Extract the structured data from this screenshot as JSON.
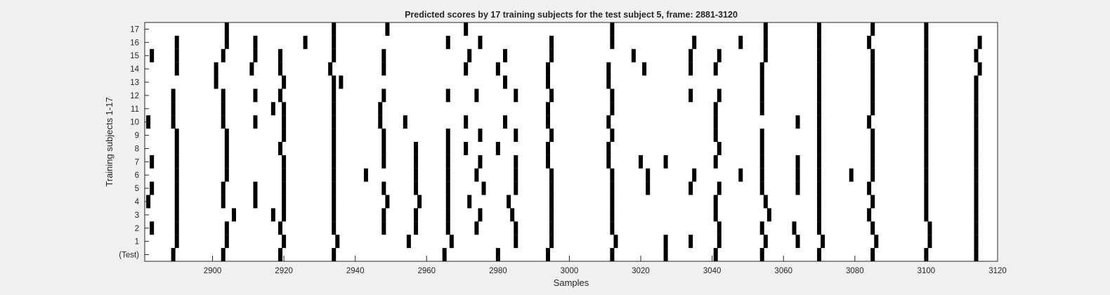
{
  "chart_data": {
    "type": "raster",
    "title": "Predicted scores by 17 training subjects for the test subject 5, frame: 2881-3120",
    "xlabel": "Samples",
    "ylabel": "Training subjects 1-17",
    "xlim": [
      2881,
      3120
    ],
    "xticks": [
      2900,
      2920,
      2940,
      2960,
      2980,
      3000,
      3020,
      3040,
      3060,
      3080,
      3100,
      3120
    ],
    "grid": false,
    "mark_color": "#000000",
    "background_color": "#ffffff",
    "rows": [
      {
        "label": "17",
        "events": [
          2904,
          2934,
          2949,
          2971,
          3012,
          3055,
          3070,
          3085,
          3100
        ]
      },
      {
        "label": "16",
        "events": [
          2890,
          2904,
          2912,
          2926,
          2934,
          2966,
          2975,
          2995,
          3012,
          3035,
          3048,
          3055,
          3070,
          3084,
          3100,
          3115
        ]
      },
      {
        "label": "15",
        "events": [
          2883,
          2890,
          2903,
          2912,
          2919,
          2934,
          2948,
          2972,
          2982,
          2995,
          3018,
          3034,
          3042,
          3055,
          3070,
          3085,
          3100,
          3114
        ]
      },
      {
        "label": "14",
        "events": [
          2890,
          2901,
          2911,
          2919,
          2933,
          2948,
          2971,
          2980,
          2994,
          3011,
          3021,
          3034,
          3041,
          3054,
          3070,
          3085,
          3100,
          3115
        ]
      },
      {
        "label": "13",
        "events": [
          2901,
          2920,
          2934,
          2936,
          2982,
          2994,
          3011,
          3054,
          3070,
          3085,
          3100,
          3114
        ]
      },
      {
        "label": "12",
        "events": [
          2889,
          2903,
          2912,
          2919,
          2934,
          2948,
          2966,
          2974,
          2985,
          2995,
          3012,
          3034,
          3042,
          3054,
          3070,
          3085,
          3100,
          3114
        ]
      },
      {
        "label": "11",
        "events": [
          2889,
          2903,
          2917,
          2920,
          2934,
          2947,
          2994,
          3012,
          3041,
          3054,
          3070,
          3085,
          3100,
          3114
        ]
      },
      {
        "label": "10",
        "events": [
          2882,
          2889,
          2903,
          2912,
          2920,
          2934,
          2947,
          2954,
          2971,
          2982,
          2994,
          3011,
          3041,
          3064,
          3070,
          3084,
          3100,
          3114
        ]
      },
      {
        "label": "9",
        "events": [
          2890,
          2904,
          2920,
          2934,
          2948,
          2966,
          2975,
          2985,
          2995,
          3012,
          3041,
          3054,
          3070,
          3085,
          3100,
          3114
        ]
      },
      {
        "label": "8",
        "events": [
          2890,
          2904,
          2919,
          2934,
          2948,
          2957,
          2966,
          2971,
          2980,
          2994,
          3011,
          3042,
          3054,
          3070,
          3085,
          3100,
          3114
        ]
      },
      {
        "label": "7",
        "events": [
          2883,
          2890,
          2904,
          2920,
          2934,
          2948,
          2957,
          2966,
          2975,
          2985,
          2994,
          3011,
          3020,
          3027,
          3041,
          3054,
          3064,
          3070,
          3085,
          3100,
          3114
        ]
      },
      {
        "label": "6",
        "events": [
          2890,
          2904,
          2920,
          2934,
          2943,
          2957,
          2966,
          2974,
          2985,
          2995,
          3012,
          3022,
          3035,
          3048,
          3054,
          3064,
          3070,
          3079,
          3085,
          3100,
          3114
        ]
      },
      {
        "label": "5",
        "events": [
          2883,
          2890,
          2903,
          2912,
          2920,
          2934,
          2948,
          2957,
          2966,
          2976,
          2985,
          2995,
          3012,
          3022,
          3034,
          3042,
          3054,
          3064,
          3070,
          3084,
          3100,
          3114
        ]
      },
      {
        "label": "4",
        "events": [
          2882,
          2890,
          2903,
          2912,
          2920,
          2934,
          2949,
          2958,
          2966,
          2972,
          2983,
          2995,
          3012,
          3041,
          3055,
          3070,
          3085,
          3100,
          3114
        ]
      },
      {
        "label": "3",
        "events": [
          2890,
          2906,
          2917,
          2920,
          2934,
          2948,
          2957,
          2966,
          2975,
          2984,
          2995,
          3012,
          3041,
          3056,
          3070,
          3084,
          3100,
          3114
        ]
      },
      {
        "label": "2",
        "events": [
          2883,
          2890,
          2904,
          2919,
          2934,
          2948,
          2957,
          2966,
          2974,
          2985,
          2995,
          3012,
          3042,
          3054,
          3063,
          3070,
          3085,
          3101,
          3114
        ]
      },
      {
        "label": "1",
        "events": [
          2890,
          2904,
          2920,
          2935,
          2955,
          2967,
          2985,
          2995,
          3013,
          3027,
          3034,
          3042,
          3055,
          3064,
          3071,
          3086,
          3101,
          3114
        ]
      },
      {
        "label": "(Test)",
        "events": [
          2889,
          2903,
          2919,
          2934,
          2965,
          2980,
          2994,
          3012,
          3027,
          3041,
          3054,
          3070,
          3085,
          3100,
          3114
        ]
      }
    ]
  }
}
